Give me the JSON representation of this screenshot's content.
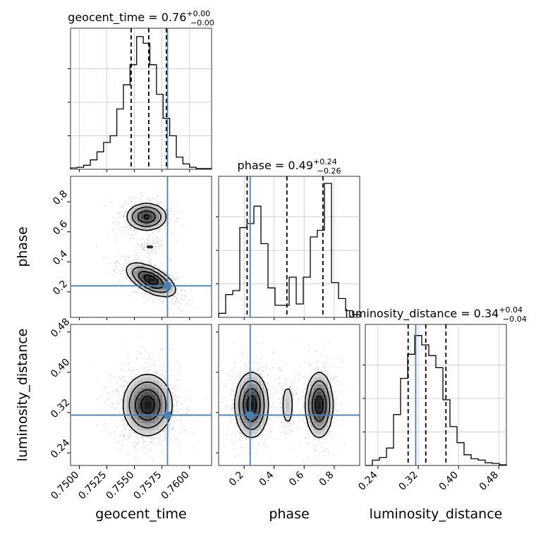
{
  "chart_data": {
    "type": "corner",
    "parameters": [
      "geocent_time",
      "phase",
      "luminosity_distance"
    ],
    "truths": {
      "geocent_time": 0.758,
      "phase": 0.24,
      "luminosity_distance": 0.315
    },
    "titles": [
      {
        "param": "geocent_time",
        "prefix": "geocent_time = ",
        "median": "0.76",
        "plus": "+0.00",
        "minus": "−0.00"
      },
      {
        "param": "phase",
        "prefix": "phase = ",
        "median": "0.49",
        "plus": "+0.24",
        "minus": "−0.26"
      },
      {
        "param": "luminosity_distance",
        "prefix": "luminosity_distance = ",
        "median": "0.34",
        "plus": "+0.04",
        "minus": "−0.04"
      }
    ],
    "axis_labels": [
      "geocent_time",
      "phase",
      "luminosity_distance"
    ],
    "ranges": {
      "geocent_time": [
        0.7492,
        0.762
      ],
      "phase": [
        0.03,
        0.97
      ],
      "luminosity_distance": [
        0.215,
        0.495
      ]
    },
    "ticks": {
      "geocent_time": {
        "values": [
          0.75,
          0.7525,
          0.755,
          0.7575,
          0.76
        ],
        "labels": [
          "0.7500",
          "0.7525",
          "0.7550",
          "0.7575",
          "0.7600"
        ]
      },
      "phase": {
        "values": [
          0.2,
          0.4,
          0.6,
          0.8
        ],
        "labels": [
          "0.2",
          "0.4",
          "0.6",
          "0.8"
        ]
      },
      "luminosity_distance": {
        "values": [
          0.24,
          0.32,
          0.4,
          0.48
        ],
        "labels": [
          "0.24",
          "0.32",
          "0.40",
          "0.48"
        ]
      }
    },
    "quantiles": {
      "geocent_time": [
        0.7547,
        0.7563,
        0.7579
      ],
      "phase": [
        0.22,
        0.485,
        0.725
      ],
      "luminosity_distance": [
        0.3,
        0.335,
        0.375
      ]
    },
    "histograms": {
      "geocent_time": {
        "edges": [
          0.7492,
          0.7498,
          0.7504,
          0.751,
          0.7516,
          0.7522,
          0.7528,
          0.7534,
          0.754,
          0.7546,
          0.7552,
          0.7558,
          0.7564,
          0.757,
          0.7576,
          0.7582,
          0.7588,
          0.7594,
          0.76,
          0.7606,
          0.762
        ],
        "counts": [
          0.01,
          0.015,
          0.03,
          0.07,
          0.13,
          0.2,
          0.25,
          0.45,
          0.63,
          0.78,
          0.99,
          0.94,
          0.78,
          0.56,
          0.38,
          0.25,
          0.09,
          0.04,
          0.015,
          0.005
        ]
      },
      "phase": {
        "edges": [
          0.03,
          0.077,
          0.124,
          0.171,
          0.218,
          0.265,
          0.312,
          0.359,
          0.406,
          0.453,
          0.5,
          0.547,
          0.594,
          0.641,
          0.688,
          0.735,
          0.782,
          0.829,
          0.876,
          0.923,
          0.97
        ],
        "counts": [
          0.03,
          0.17,
          0.2,
          0.67,
          0.7,
          0.83,
          0.55,
          0.22,
          0.09,
          0.09,
          0.3,
          0.1,
          0.3,
          0.6,
          0.65,
          1.0,
          0.26,
          0.14,
          0.05,
          0.02
        ]
      },
      "luminosity_distance": {
        "edges": [
          0.215,
          0.229,
          0.243,
          0.257,
          0.271,
          0.285,
          0.299,
          0.313,
          0.327,
          0.341,
          0.355,
          0.369,
          0.383,
          0.397,
          0.411,
          0.425,
          0.439,
          0.453,
          0.467,
          0.481,
          0.495
        ],
        "counts": [
          0.0,
          0.04,
          0.06,
          0.13,
          0.38,
          0.65,
          0.83,
          0.97,
          0.9,
          0.82,
          0.73,
          0.49,
          0.29,
          0.17,
          0.08,
          0.05,
          0.04,
          0.02,
          0.015,
          0.005
        ]
      }
    },
    "pairs": [
      {
        "x": "geocent_time",
        "y": "phase",
        "modes": [
          {
            "cx": 0.7561,
            "cy": 0.7,
            "sx": 0.0009,
            "sy": 0.045,
            "w": 0.35,
            "rho": 0.0
          },
          {
            "cx": 0.7564,
            "cy": 0.5,
            "sx": 0.0005,
            "sy": 0.02,
            "w": 0.06,
            "rho": 0.0
          },
          {
            "cx": 0.7565,
            "cy": 0.28,
            "sx": 0.0011,
            "sy": 0.055,
            "w": 0.4,
            "rho": -0.6
          }
        ]
      },
      {
        "x": "geocent_time",
        "y": "luminosity_distance",
        "modes": [
          {
            "cx": 0.7562,
            "cy": 0.335,
            "sx": 0.0011,
            "sy": 0.03,
            "w": 1.0,
            "rho": 0.0
          }
        ]
      },
      {
        "x": "phase",
        "y": "luminosity_distance",
        "modes": [
          {
            "cx": 0.25,
            "cy": 0.335,
            "sx": 0.055,
            "sy": 0.032,
            "w": 0.45,
            "rho": 0.0
          },
          {
            "cx": 0.49,
            "cy": 0.335,
            "sx": 0.025,
            "sy": 0.028,
            "w": 0.12,
            "rho": 0.0
          },
          {
            "cx": 0.7,
            "cy": 0.335,
            "sx": 0.045,
            "sy": 0.032,
            "w": 0.45,
            "rho": 0.0
          }
        ]
      }
    ],
    "colors": {
      "truth": "#4682b4",
      "hist": "#000000",
      "grid": "#c0c0c0",
      "quantile": "#000000"
    }
  }
}
